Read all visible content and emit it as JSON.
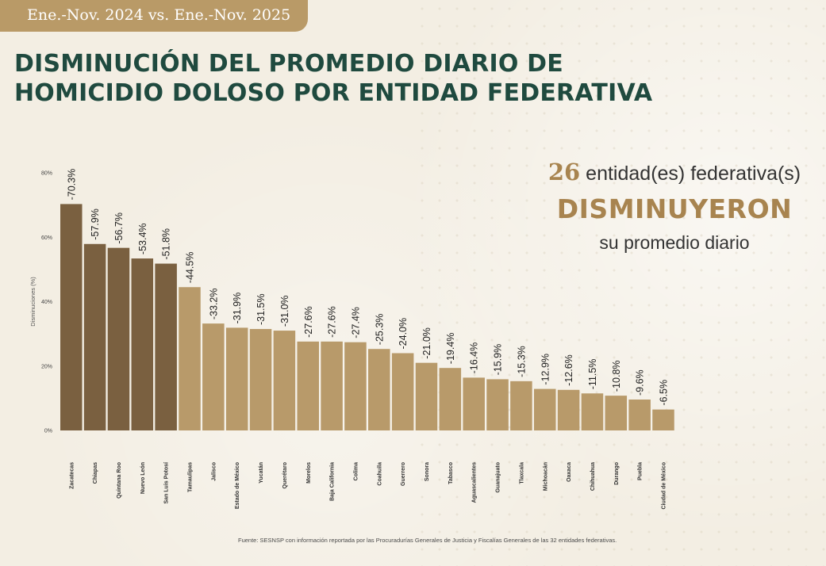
{
  "header": {
    "period": "Ene.-Nov. 2024 vs. Ene.-Nov. 2025",
    "title_line1": "DISMINUCIÓN DEL PROMEDIO DIARIO DE",
    "title_line2": "HOMICIDIO DOLOSO POR ENTIDAD FEDERATIVA"
  },
  "callout": {
    "count": "26",
    "line1_text": "entidad(es) federativa(s)",
    "line2": "DISMINUYERON",
    "line3": "su promedio diario"
  },
  "source": "Fuente: SESNSP con información reportada por las Procuradurías Generales de Justicia y Fiscalías Generales de las 32 entidades federativas.",
  "colors": {
    "dark_bar": "#7a6040",
    "light_bar": "#b89a6a",
    "title": "#1f4a3f",
    "accent": "#a8844f",
    "badge": "#b99a67"
  },
  "chart_data": {
    "type": "bar",
    "title": "",
    "xlabel": "",
    "ylabel": "Disminuciones (%)",
    "ylim": [
      0,
      80
    ],
    "yticks": [
      "0%",
      "20%",
      "40%",
      "60%",
      "80%"
    ],
    "categories": [
      "Zacatecas",
      "Chiapas",
      "Quintana Roo",
      "Nuevo León",
      "San Luis Potosí",
      "Tamaulipas",
      "Jalisco",
      "Estado de México",
      "Yucatán",
      "Querétaro",
      "Morelos",
      "Baja California",
      "Colima",
      "Coahuila",
      "Guerrero",
      "Sonora",
      "Tabasco",
      "Aguascalientes",
      "Guanajuato",
      "Tlaxcala",
      "Michoacán",
      "Oaxaca",
      "Chihuahua",
      "Durango",
      "Puebla",
      "Ciudad de México"
    ],
    "values": [
      70.3,
      57.9,
      56.7,
      53.4,
      51.8,
      44.5,
      33.2,
      31.9,
      31.5,
      31.0,
      27.6,
      27.6,
      27.4,
      25.3,
      24.0,
      21.0,
      19.4,
      16.4,
      15.9,
      15.3,
      12.9,
      12.6,
      11.5,
      10.8,
      9.6,
      6.5
    ],
    "labels": [
      "-70.3%",
      "-57.9%",
      "-56.7%",
      "-53.4%",
      "-51.8%",
      "-44.5%",
      "-33.2%",
      "-31.9%",
      "-31.5%",
      "-31.0%",
      "-27.6%",
      "-27.6%",
      "-27.4%",
      "-25.3%",
      "-24.0%",
      "-21.0%",
      "-19.4%",
      "-16.4%",
      "-15.9%",
      "-15.3%",
      "-12.9%",
      "-12.6%",
      "-11.5%",
      "-10.8%",
      "-9.6%",
      "-6.5%"
    ],
    "highlight_count": 5
  }
}
